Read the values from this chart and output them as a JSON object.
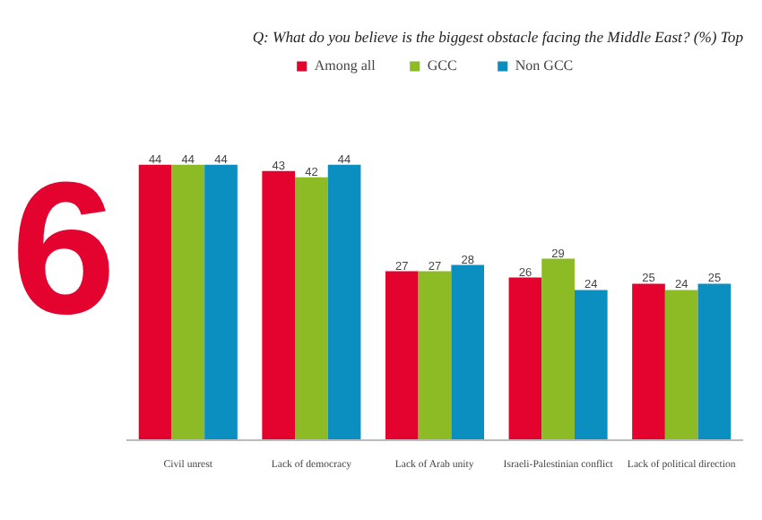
{
  "chart_data": {
    "type": "bar",
    "title": "Q: What do you believe is the biggest obstacle facing the Middle East? (%) Top",
    "annotations": [
      "6"
    ],
    "categories": [
      "Civil unrest",
      "Lack of democracy",
      "Lack of Arab unity",
      "Israeli-Palestinian conflict",
      "Lack of political direction"
    ],
    "series": [
      {
        "name": "Among all",
        "color": "#e4032e",
        "values": [
          44,
          43,
          27,
          26,
          25
        ]
      },
      {
        "name": "GCC",
        "color": "#8dbb25",
        "values": [
          44,
          42,
          27,
          29,
          24
        ]
      },
      {
        "name": "Non GCC",
        "color": "#0a8fc0",
        "values": [
          44,
          44,
          28,
          24,
          25
        ]
      }
    ],
    "data_labels": true,
    "legend": "top",
    "grid": false
  }
}
